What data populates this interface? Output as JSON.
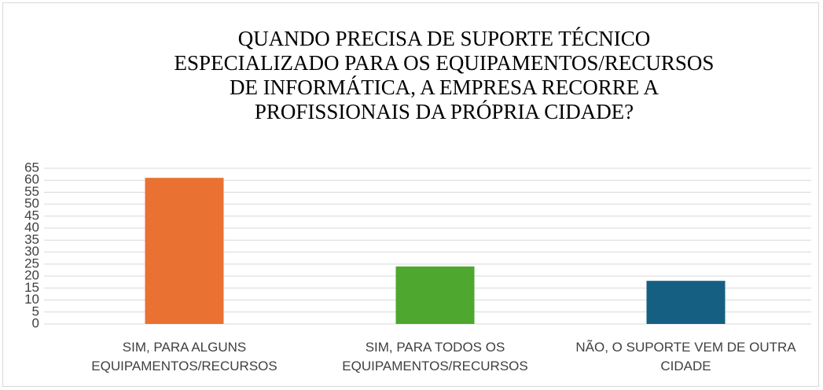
{
  "chart_data": {
    "type": "bar",
    "title": "QUANDO PRECISA DE SUPORTE TÉCNICO ESPECIALIZADO PARA OS EQUIPAMENTOS/RECURSOS DE INFORMÁTICA, A EMPRESA RECORRE A PROFISSIONAIS DA PRÓPRIA CIDADE?",
    "categories": [
      "SIM, PARA ALGUNS EQUIPAMENTOS/RECURSOS",
      "SIM, PARA TODOS OS EQUIPAMENTOS/RECURSOS",
      "NÃO, O SUPORTE VEM DE OUTRA CIDADE"
    ],
    "values": [
      61,
      24,
      18
    ],
    "colors": [
      "#e97132",
      "#4ea72e",
      "#156082"
    ],
    "ylim": [
      0,
      65
    ],
    "yticks": [
      0,
      5,
      10,
      15,
      20,
      25,
      30,
      35,
      40,
      45,
      50,
      55,
      60,
      65
    ],
    "grid": true
  }
}
